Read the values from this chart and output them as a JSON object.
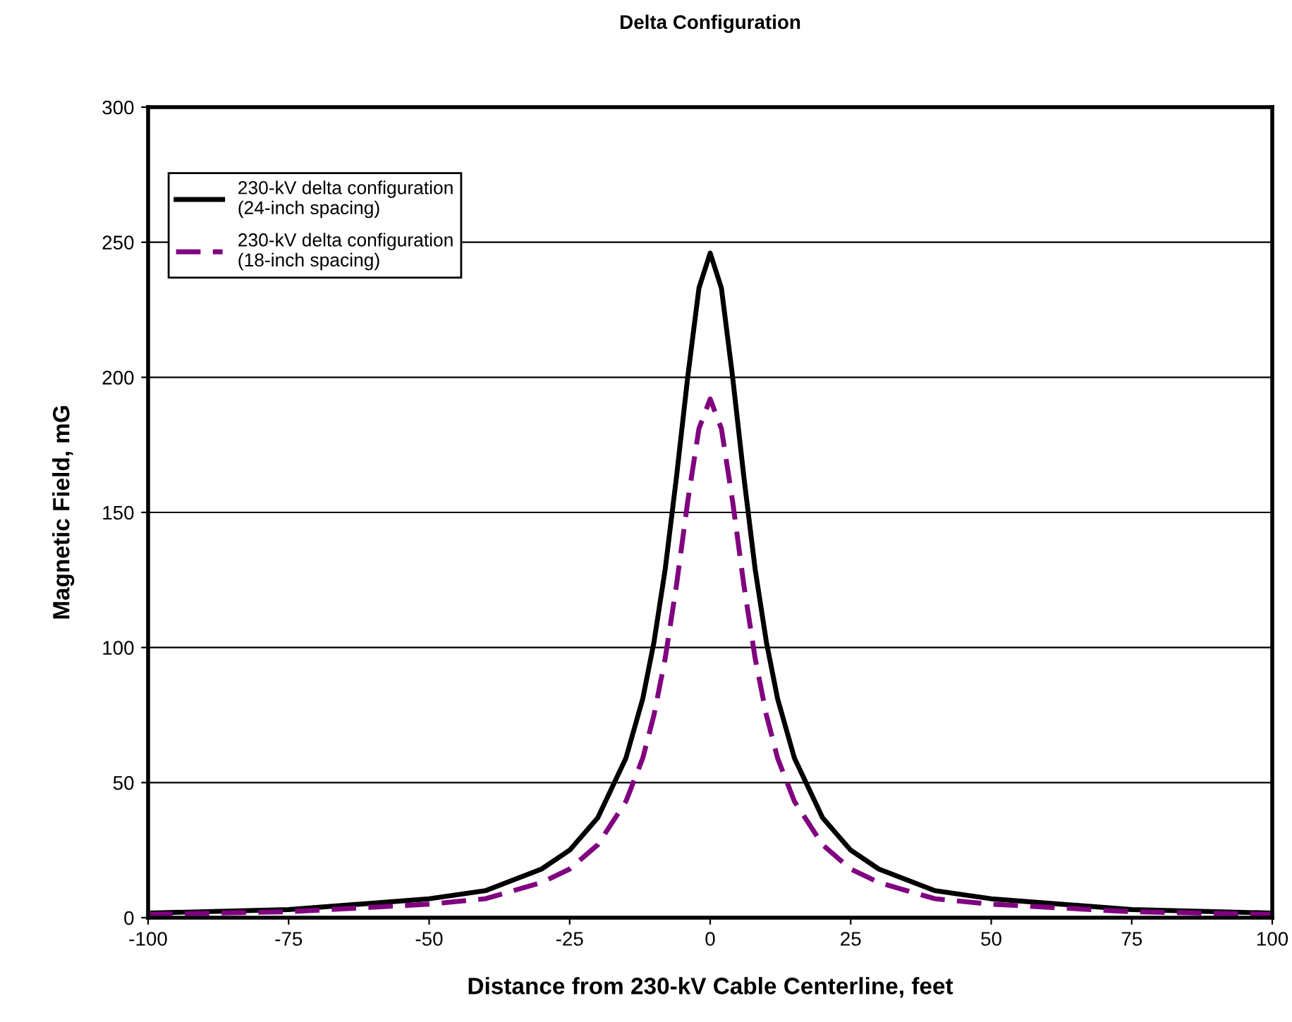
{
  "chart_data": {
    "type": "line",
    "title": "Delta Configuration",
    "xlabel": "Distance from 230-kV Cable Centerline, feet",
    "ylabel": "Magnetic Field, mG",
    "x": [
      -100,
      -75,
      -50,
      -40,
      -30,
      -25,
      -20,
      -15,
      -12,
      -10,
      -8,
      -6,
      -4,
      -2,
      0,
      2,
      4,
      6,
      8,
      10,
      12,
      15,
      20,
      25,
      30,
      40,
      50,
      75,
      100
    ],
    "series": [
      {
        "name": "230-kV delta configuration\n(24-inch spacing)",
        "color": "#000000",
        "line_style": "solid",
        "values": [
          1.7,
          3,
          7,
          10,
          18,
          25,
          37,
          59,
          81,
          102,
          129,
          163,
          200,
          233,
          246,
          233,
          200,
          163,
          129,
          102,
          81,
          59,
          37,
          25,
          18,
          10,
          7,
          3,
          1.7
        ]
      },
      {
        "name": "230-kV delta configuration\n(18-inch spacing)",
        "color": "#800080",
        "line_style": "dashed",
        "values": [
          1.2,
          2.2,
          5,
          7,
          13,
          18,
          27,
          43,
          59,
          75,
          96,
          123,
          154,
          181,
          192,
          181,
          154,
          123,
          96,
          75,
          59,
          43,
          27,
          18,
          13,
          7,
          5,
          2.2,
          1.2
        ]
      }
    ],
    "xlim": [
      -100,
      100
    ],
    "ylim": [
      0,
      300
    ],
    "xticks": [
      -100,
      -75,
      -50,
      -25,
      0,
      25,
      50,
      75,
      100
    ],
    "yticks": [
      0,
      50,
      100,
      150,
      200,
      250,
      300
    ],
    "grid": "y",
    "legend": "top left",
    "marker": "none"
  }
}
